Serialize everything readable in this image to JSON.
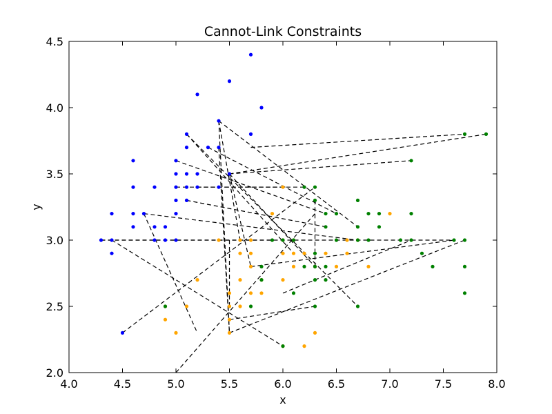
{
  "chart_data": {
    "type": "scatter",
    "title": "Cannot-Link Constraints",
    "xlabel": "x",
    "ylabel": "y",
    "xlim": [
      4.0,
      8.0
    ],
    "ylim": [
      2.0,
      4.5
    ],
    "xticks": [
      "4.0",
      "4.5",
      "5.0",
      "5.5",
      "6.0",
      "6.5",
      "7.0",
      "7.5",
      "8.0"
    ],
    "yticks": [
      "2.0",
      "2.5",
      "3.0",
      "3.5",
      "4.0",
      "4.5"
    ],
    "grid": false,
    "series": [
      {
        "color": "#0000ff",
        "points": [
          [
            5.7,
            4.4
          ],
          [
            5.5,
            4.2
          ],
          [
            5.2,
            4.1
          ],
          [
            5.8,
            4.0
          ],
          [
            5.4,
            3.9
          ],
          [
            5.1,
            3.8
          ],
          [
            5.7,
            3.8
          ],
          [
            5.3,
            3.7
          ],
          [
            5.1,
            3.7
          ],
          [
            5.4,
            3.7
          ],
          [
            4.6,
            3.6
          ],
          [
            5.0,
            3.6
          ],
          [
            5.5,
            3.5
          ],
          [
            5.0,
            3.5
          ],
          [
            5.1,
            3.5
          ],
          [
            5.2,
            3.5
          ],
          [
            4.6,
            3.4
          ],
          [
            4.8,
            3.4
          ],
          [
            5.0,
            3.4
          ],
          [
            5.1,
            3.4
          ],
          [
            5.2,
            3.4
          ],
          [
            5.4,
            3.4
          ],
          [
            5.0,
            3.3
          ],
          [
            5.1,
            3.3
          ],
          [
            4.4,
            3.2
          ],
          [
            4.6,
            3.2
          ],
          [
            4.7,
            3.2
          ],
          [
            5.0,
            3.2
          ],
          [
            4.6,
            3.1
          ],
          [
            4.8,
            3.1
          ],
          [
            4.9,
            3.1
          ],
          [
            4.3,
            3.0
          ],
          [
            4.4,
            3.0
          ],
          [
            4.8,
            3.0
          ],
          [
            4.9,
            3.0
          ],
          [
            5.0,
            3.0
          ],
          [
            4.4,
            2.9
          ],
          [
            4.5,
            2.3
          ]
        ]
      },
      {
        "color": "#ffa500",
        "points": [
          [
            6.0,
            3.4
          ],
          [
            5.9,
            3.2
          ],
          [
            7.0,
            3.2
          ],
          [
            6.0,
            3.0
          ],
          [
            6.6,
            3.0
          ],
          [
            5.6,
            3.0
          ],
          [
            5.7,
            3.0
          ],
          [
            6.1,
            3.0
          ],
          [
            5.4,
            3.0
          ],
          [
            5.6,
            2.9
          ],
          [
            6.0,
            2.9
          ],
          [
            6.1,
            2.9
          ],
          [
            6.2,
            2.9
          ],
          [
            6.4,
            2.9
          ],
          [
            6.6,
            2.9
          ],
          [
            5.7,
            2.9
          ],
          [
            5.7,
            2.8
          ],
          [
            6.1,
            2.8
          ],
          [
            6.5,
            2.8
          ],
          [
            6.8,
            2.8
          ],
          [
            5.6,
            2.7
          ],
          [
            5.8,
            2.7
          ],
          [
            6.0,
            2.7
          ],
          [
            5.2,
            2.7
          ],
          [
            5.5,
            2.6
          ],
          [
            5.7,
            2.6
          ],
          [
            5.8,
            2.6
          ],
          [
            5.5,
            2.5
          ],
          [
            5.6,
            2.5
          ],
          [
            5.1,
            2.5
          ],
          [
            4.9,
            2.4
          ],
          [
            5.5,
            2.4
          ],
          [
            5.0,
            2.3
          ],
          [
            5.5,
            2.3
          ],
          [
            6.3,
            2.3
          ],
          [
            6.2,
            2.2
          ],
          [
            6.0,
            2.2
          ],
          [
            4.9,
            2.5
          ],
          [
            6.3,
            2.8
          ],
          [
            6.7,
            3.0
          ]
        ]
      },
      {
        "color": "#008000",
        "points": [
          [
            7.7,
            3.8
          ],
          [
            7.9,
            3.8
          ],
          [
            7.2,
            3.6
          ],
          [
            6.2,
            3.4
          ],
          [
            6.3,
            3.4
          ],
          [
            6.3,
            3.3
          ],
          [
            6.7,
            3.3
          ],
          [
            6.4,
            3.2
          ],
          [
            6.5,
            3.2
          ],
          [
            6.8,
            3.2
          ],
          [
            6.9,
            3.2
          ],
          [
            7.2,
            3.2
          ],
          [
            6.4,
            3.1
          ],
          [
            6.7,
            3.1
          ],
          [
            6.9,
            3.1
          ],
          [
            5.9,
            3.0
          ],
          [
            6.0,
            3.0
          ],
          [
            6.1,
            3.0
          ],
          [
            6.5,
            3.0
          ],
          [
            6.7,
            3.0
          ],
          [
            6.8,
            3.0
          ],
          [
            7.1,
            3.0
          ],
          [
            7.2,
            3.0
          ],
          [
            7.6,
            3.0
          ],
          [
            7.7,
            3.0
          ],
          [
            6.3,
            2.9
          ],
          [
            7.3,
            2.9
          ],
          [
            5.8,
            2.8
          ],
          [
            6.2,
            2.8
          ],
          [
            6.3,
            2.8
          ],
          [
            6.4,
            2.8
          ],
          [
            7.4,
            2.8
          ],
          [
            7.7,
            2.8
          ],
          [
            5.8,
            2.7
          ],
          [
            6.3,
            2.7
          ],
          [
            6.4,
            2.7
          ],
          [
            6.1,
            2.6
          ],
          [
            7.7,
            2.6
          ],
          [
            4.9,
            2.5
          ],
          [
            5.7,
            2.5
          ],
          [
            6.3,
            2.5
          ],
          [
            6.7,
            2.5
          ],
          [
            6.0,
            2.2
          ]
        ]
      }
    ],
    "constraints": [
      [
        [
          5.7,
          3.7
        ],
        [
          7.7,
          3.8
        ]
      ],
      [
        [
          5.5,
          3.5
        ],
        [
          7.9,
          3.8
        ]
      ],
      [
        [
          5.5,
          3.5
        ],
        [
          7.2,
          3.6
        ]
      ],
      [
        [
          5.4,
          3.9
        ],
        [
          5.6,
          3.0
        ]
      ],
      [
        [
          5.4,
          3.9
        ],
        [
          5.5,
          2.3
        ]
      ],
      [
        [
          5.4,
          3.9
        ],
        [
          6.7,
          3.1
        ]
      ],
      [
        [
          5.1,
          3.8
        ],
        [
          6.7,
          2.5
        ]
      ],
      [
        [
          5.1,
          3.8
        ],
        [
          6.1,
          2.9
        ]
      ],
      [
        [
          5.3,
          3.7
        ],
        [
          6.5,
          3.2
        ]
      ],
      [
        [
          5.4,
          3.7
        ],
        [
          5.5,
          2.3
        ]
      ],
      [
        [
          5.0,
          3.6
        ],
        [
          6.4,
          3.2
        ]
      ],
      [
        [
          5.0,
          3.4
        ],
        [
          6.2,
          3.4
        ]
      ],
      [
        [
          5.2,
          3.4
        ],
        [
          6.0,
          3.4
        ]
      ],
      [
        [
          5.1,
          3.3
        ],
        [
          6.4,
          3.1
        ]
      ],
      [
        [
          5.5,
          3.5
        ],
        [
          5.7,
          2.8
        ]
      ],
      [
        [
          5.5,
          3.5
        ],
        [
          6.3,
          2.8
        ]
      ],
      [
        [
          4.7,
          3.2
        ],
        [
          6.7,
          3.0
        ]
      ],
      [
        [
          4.7,
          3.2
        ],
        [
          5.2,
          2.3
        ]
      ],
      [
        [
          4.3,
          3.0
        ],
        [
          5.9,
          3.0
        ]
      ],
      [
        [
          4.3,
          3.0
        ],
        [
          7.6,
          3.0
        ]
      ],
      [
        [
          4.4,
          3.0
        ],
        [
          6.0,
          2.2
        ]
      ],
      [
        [
          4.5,
          2.3
        ],
        [
          6.3,
          3.4
        ]
      ],
      [
        [
          5.0,
          2.0
        ],
        [
          6.3,
          3.2
        ]
      ],
      [
        [
          5.5,
          2.3
        ],
        [
          7.7,
          3.0
        ]
      ],
      [
        [
          5.5,
          2.4
        ],
        [
          6.3,
          2.5
        ]
      ],
      [
        [
          5.5,
          2.5
        ],
        [
          5.5,
          3.0
        ]
      ],
      [
        [
          6.3,
          3.3
        ],
        [
          6.3,
          2.8
        ]
      ],
      [
        [
          5.7,
          2.8
        ],
        [
          7.6,
          3.0
        ]
      ],
      [
        [
          6.0,
          2.6
        ],
        [
          7.2,
          3.0
        ]
      ]
    ]
  }
}
